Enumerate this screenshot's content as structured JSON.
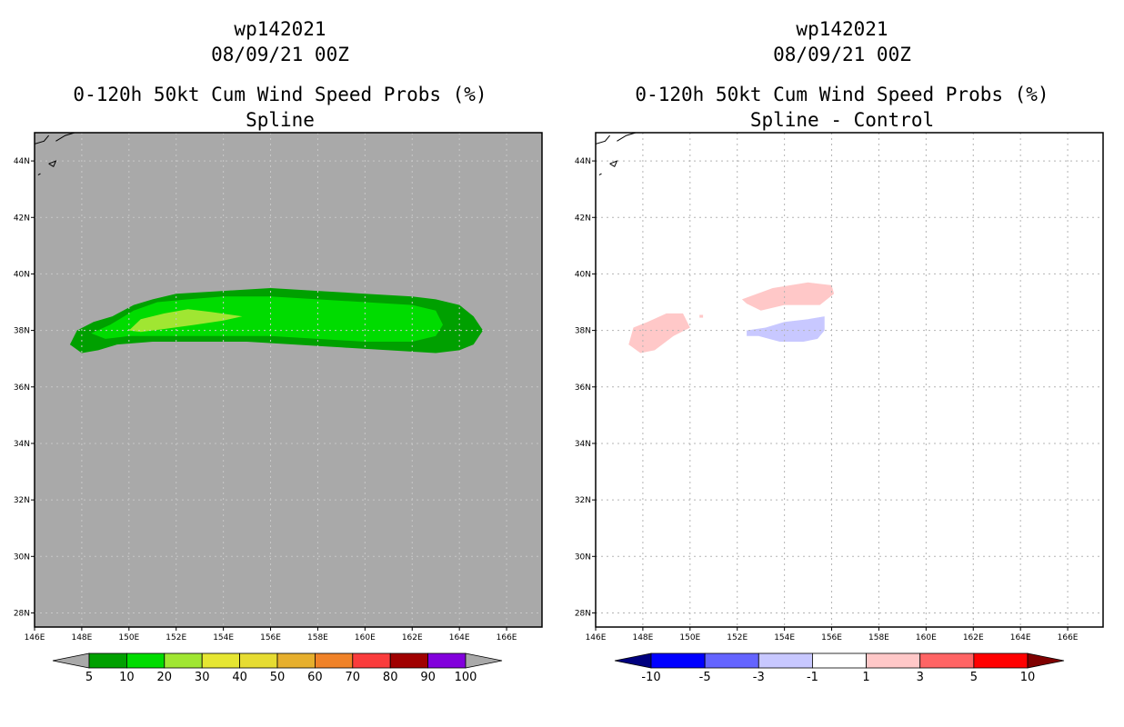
{
  "chart_data": [
    {
      "type": "heatmap",
      "id": "left",
      "title_lines": [
        "wp142021",
        "08/09/21 00Z",
        "0-120h 50kt Cum Wind Speed Probs (%)",
        "Spline"
      ],
      "xlim": [
        146,
        167.5
      ],
      "ylim": [
        27.5,
        45
      ],
      "xticks": [
        146,
        148,
        150,
        152,
        154,
        156,
        158,
        160,
        162,
        164,
        166
      ],
      "xtick_labels": [
        "146E",
        "148E",
        "150E",
        "152E",
        "154E",
        "156E",
        "158E",
        "160E",
        "162E",
        "164E",
        "166E"
      ],
      "yticks": [
        28,
        30,
        32,
        34,
        36,
        38,
        40,
        42,
        44
      ],
      "ytick_labels": [
        "28N",
        "30N",
        "32N",
        "34N",
        "36N",
        "38N",
        "40N",
        "42N",
        "44N"
      ],
      "background": "#a9a9a9",
      "grid": true,
      "contours": [
        {
          "level": "5-10",
          "color": "#00a000",
          "points": [
            [
              147.5,
              37.5
            ],
            [
              147.8,
              38.0
            ],
            [
              148.5,
              38.3
            ],
            [
              149.3,
              38.5
            ],
            [
              150.2,
              38.9
            ],
            [
              151.0,
              39.1
            ],
            [
              152.0,
              39.3
            ],
            [
              154.0,
              39.4
            ],
            [
              156.0,
              39.5
            ],
            [
              158.0,
              39.4
            ],
            [
              160.0,
              39.3
            ],
            [
              162.0,
              39.2
            ],
            [
              163.0,
              39.1
            ],
            [
              164.0,
              38.9
            ],
            [
              164.6,
              38.5
            ],
            [
              165.0,
              38.0
            ],
            [
              164.6,
              37.5
            ],
            [
              164.0,
              37.3
            ],
            [
              163.0,
              37.2
            ],
            [
              161.0,
              37.3
            ],
            [
              159.0,
              37.4
            ],
            [
              157.0,
              37.5
            ],
            [
              155.0,
              37.6
            ],
            [
              153.0,
              37.6
            ],
            [
              151.0,
              37.6
            ],
            [
              149.5,
              37.5
            ],
            [
              148.7,
              37.3
            ],
            [
              148.0,
              37.2
            ]
          ]
        },
        {
          "level": "10-20",
          "color": "#00dc00",
          "points": [
            [
              148.4,
              37.9
            ],
            [
              149.2,
              38.2
            ],
            [
              150.2,
              38.7
            ],
            [
              151.2,
              39.0
            ],
            [
              152.5,
              39.1
            ],
            [
              154.0,
              39.2
            ],
            [
              156.0,
              39.2
            ],
            [
              158.0,
              39.1
            ],
            [
              160.0,
              39.0
            ],
            [
              162.0,
              38.9
            ],
            [
              163.0,
              38.7
            ],
            [
              163.3,
              38.2
            ],
            [
              163.0,
              37.8
            ],
            [
              162.0,
              37.6
            ],
            [
              160.0,
              37.6
            ],
            [
              158.0,
              37.7
            ],
            [
              156.0,
              37.8
            ],
            [
              154.0,
              37.8
            ],
            [
              152.0,
              37.8
            ],
            [
              150.0,
              37.8
            ],
            [
              149.0,
              37.7
            ]
          ]
        },
        {
          "level": "20-30",
          "color": "#a0e632",
          "points": [
            [
              150.0,
              38.0
            ],
            [
              150.5,
              38.4
            ],
            [
              151.5,
              38.6
            ],
            [
              152.5,
              38.75
            ],
            [
              153.5,
              38.65
            ],
            [
              154.8,
              38.5
            ],
            [
              154.0,
              38.35
            ],
            [
              152.8,
              38.2
            ],
            [
              151.5,
              38.05
            ],
            [
              150.5,
              37.95
            ]
          ]
        }
      ],
      "coastlines": [
        [
          [
            146.0,
            44.6
          ],
          [
            146.4,
            44.7
          ],
          [
            146.6,
            44.9
          ]
        ],
        [
          [
            146.9,
            44.7
          ],
          [
            147.3,
            44.9
          ],
          [
            147.7,
            45.0
          ],
          [
            148.0,
            45.0
          ]
        ],
        [
          [
            146.6,
            43.9
          ],
          [
            146.9,
            44.0
          ],
          [
            146.8,
            43.8
          ],
          [
            146.6,
            43.9
          ]
        ],
        [
          [
            146.15,
            43.5
          ],
          [
            146.25,
            43.55
          ]
        ]
      ],
      "colorbar": {
        "colors": [
          "#a9a9a9",
          "#00a000",
          "#00dc00",
          "#a0e632",
          "#e6e632",
          "#e6dc32",
          "#e6af2d",
          "#f08228",
          "#fa3c3c",
          "#a00000",
          "#8200dc",
          "#a9a9a9"
        ],
        "labels": [
          "5",
          "10",
          "20",
          "30",
          "40",
          "50",
          "60",
          "70",
          "80",
          "90",
          "100"
        ]
      }
    },
    {
      "type": "heatmap",
      "id": "right",
      "title_lines": [
        "wp142021",
        "08/09/21 00Z",
        "0-120h 50kt Cum Wind Speed Probs (%)",
        "Spline - Control"
      ],
      "xlim": [
        146,
        167.5
      ],
      "ylim": [
        27.5,
        45
      ],
      "xticks": [
        146,
        148,
        150,
        152,
        154,
        156,
        158,
        160,
        162,
        164,
        166
      ],
      "xtick_labels": [
        "146E",
        "148E",
        "150E",
        "152E",
        "154E",
        "156E",
        "158E",
        "160E",
        "162E",
        "164E",
        "166E"
      ],
      "yticks": [
        28,
        30,
        32,
        34,
        36,
        38,
        40,
        42,
        44
      ],
      "ytick_labels": [
        "28N",
        "30N",
        "32N",
        "34N",
        "36N",
        "38N",
        "40N",
        "42N",
        "44N"
      ],
      "background": "#ffffff",
      "grid": true,
      "contours": [
        {
          "level": "1-3",
          "color": "#ffc8c8",
          "points": [
            [
              147.4,
              37.5
            ],
            [
              147.6,
              38.1
            ],
            [
              148.2,
              38.3
            ],
            [
              149.0,
              38.6
            ],
            [
              149.7,
              38.6
            ],
            [
              150.0,
              38.1
            ],
            [
              149.3,
              37.8
            ],
            [
              148.5,
              37.3
            ],
            [
              147.9,
              37.2
            ]
          ]
        },
        {
          "level": "1-3",
          "color": "#ffc8c8",
          "points": [
            [
              150.4,
              38.55
            ],
            [
              150.55,
              38.55
            ],
            [
              150.55,
              38.45
            ],
            [
              150.4,
              38.45
            ]
          ]
        },
        {
          "level": "1-3",
          "color": "#ffc8c8",
          "points": [
            [
              152.2,
              39.1
            ],
            [
              153.5,
              39.5
            ],
            [
              155.0,
              39.7
            ],
            [
              156.0,
              39.6
            ],
            [
              156.1,
              39.3
            ],
            [
              155.5,
              38.9
            ],
            [
              154.0,
              38.9
            ],
            [
              153.0,
              38.7
            ],
            [
              152.4,
              38.95
            ]
          ]
        },
        {
          "level": "-3--1",
          "color": "#c8c8ff",
          "points": [
            [
              152.4,
              38.0
            ],
            [
              153.2,
              38.1
            ],
            [
              154.0,
              38.3
            ],
            [
              155.0,
              38.4
            ],
            [
              155.7,
              38.5
            ],
            [
              155.7,
              38.0
            ],
            [
              155.4,
              37.7
            ],
            [
              154.8,
              37.6
            ],
            [
              153.8,
              37.6
            ],
            [
              152.9,
              37.8
            ],
            [
              152.4,
              37.8
            ]
          ]
        }
      ],
      "coastlines": [
        [
          [
            146.0,
            44.6
          ],
          [
            146.4,
            44.7
          ],
          [
            146.6,
            44.9
          ]
        ],
        [
          [
            146.9,
            44.7
          ],
          [
            147.3,
            44.9
          ],
          [
            147.7,
            45.0
          ],
          [
            148.0,
            45.0
          ]
        ],
        [
          [
            146.6,
            43.9
          ],
          [
            146.9,
            44.0
          ],
          [
            146.8,
            43.8
          ],
          [
            146.6,
            43.9
          ]
        ],
        [
          [
            146.15,
            43.5
          ],
          [
            146.25,
            43.55
          ]
        ]
      ],
      "colorbar": {
        "colors": [
          "#00007f",
          "#0000ff",
          "#6464ff",
          "#c8c8ff",
          "#ffffff",
          "#ffc8c8",
          "#ff6464",
          "#ff0000",
          "#7f0000"
        ],
        "labels": [
          "-10",
          "-5",
          "-3",
          "-1",
          "1",
          "3",
          "5",
          "10"
        ]
      }
    }
  ]
}
